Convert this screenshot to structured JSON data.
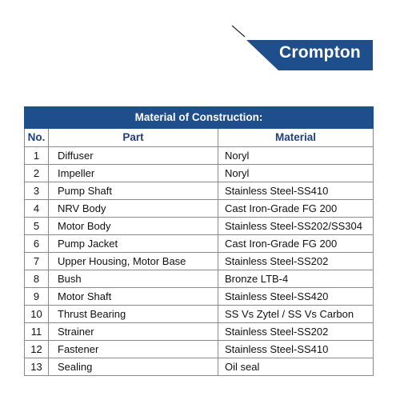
{
  "brand": {
    "name": "Crompton",
    "colors": {
      "brand_blue": "#1f4e8c",
      "header_text_blue": "#1f3f7a"
    }
  },
  "table": {
    "title": "Material of Construction:",
    "headers": {
      "no": "No.",
      "part": "Part",
      "material": "Material"
    },
    "rows": [
      {
        "no": "1",
        "part": "Diffuser",
        "material": "Noryl"
      },
      {
        "no": "2",
        "part": "Impeller",
        "material": "Noryl"
      },
      {
        "no": "3",
        "part": "Pump Shaft",
        "material": "Stainless Steel-SS410"
      },
      {
        "no": "4",
        "part": "NRV Body",
        "material": "Cast Iron-Grade FG 200"
      },
      {
        "no": "5",
        "part": "Motor Body",
        "material": "Stainless Steel-SS202/SS304"
      },
      {
        "no": "6",
        "part": "Pump Jacket",
        "material": "Cast Iron-Grade FG 200"
      },
      {
        "no": "7",
        "part": "Upper Housing, Motor Base",
        "material": "Stainless Steel-SS202"
      },
      {
        "no": "8",
        "part": "Bush",
        "material": "Bronze LTB-4"
      },
      {
        "no": "9",
        "part": "Motor Shaft",
        "material": "Stainless Steel-SS420"
      },
      {
        "no": "10",
        "part": "Thrust Bearing",
        "material": "SS Vs Zytel / SS Vs Carbon"
      },
      {
        "no": "11",
        "part": "Strainer",
        "material": "Stainless Steel-SS202"
      },
      {
        "no": "12",
        "part": "Fastener",
        "material": "Stainless Steel-SS410"
      },
      {
        "no": "13",
        "part": "Sealing",
        "material": "Oil seal"
      }
    ]
  }
}
